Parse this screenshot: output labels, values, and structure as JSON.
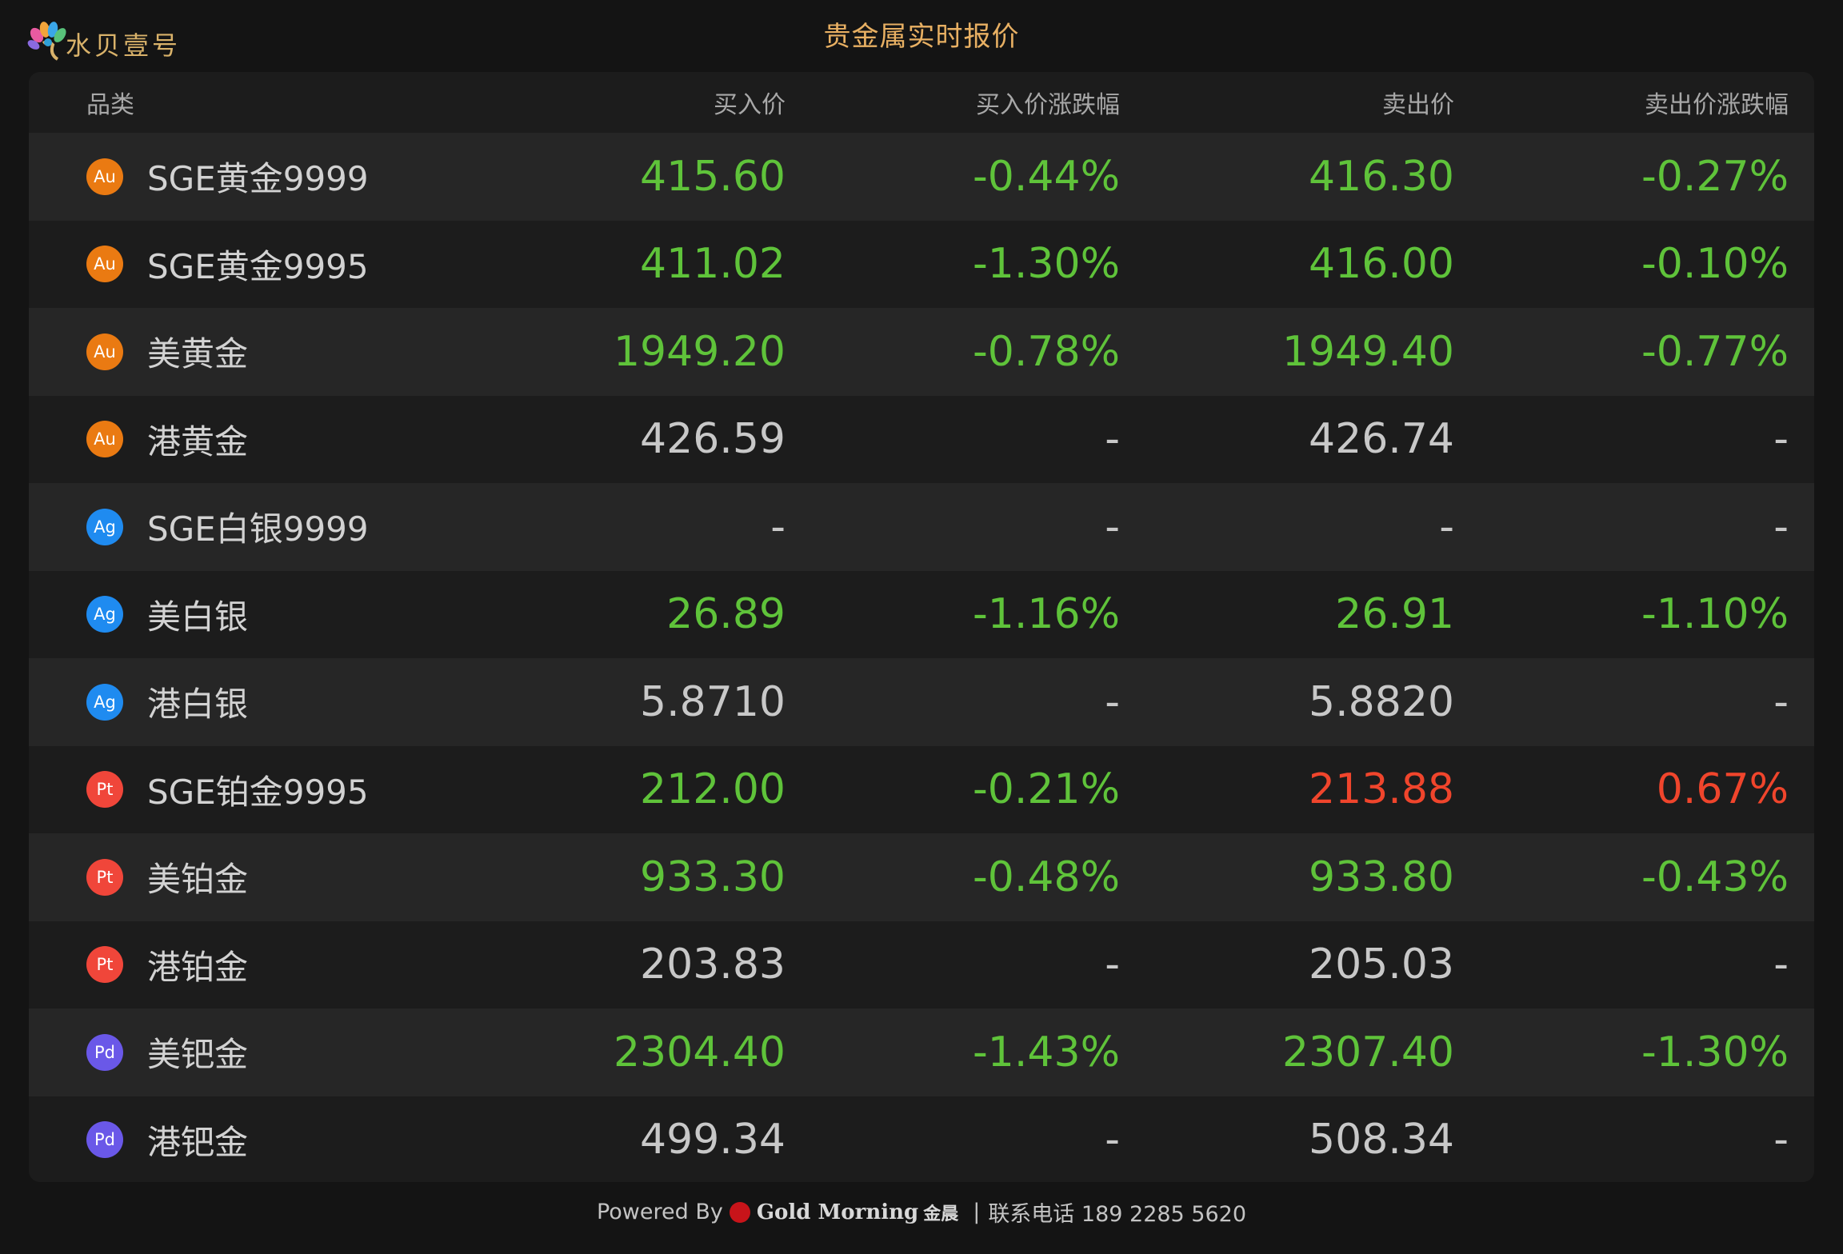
{
  "header": {
    "logo_text": "水贝壹号",
    "title": "贵金属实时报价"
  },
  "columns": {
    "category": "品类",
    "buy_price": "买入价",
    "buy_change": "买入价涨跌幅",
    "sell_price": "卖出价",
    "sell_change": "卖出价涨跌幅"
  },
  "colors": {
    "down": "#5fc33a",
    "up": "#f0452c",
    "neutral": "#c8c8c8",
    "title": "#e8b063"
  },
  "rows": [
    {
      "metal": "Au",
      "name": "SGE黄金9999",
      "buy": "415.60",
      "buy_change": "-0.44%",
      "sell": "416.30",
      "sell_change": "-0.27%",
      "buy_color": "green",
      "buy_change_color": "green",
      "sell_color": "green",
      "sell_change_color": "green"
    },
    {
      "metal": "Au",
      "name": "SGE黄金9995",
      "buy": "411.02",
      "buy_change": "-1.30%",
      "sell": "416.00",
      "sell_change": "-0.10%",
      "buy_color": "green",
      "buy_change_color": "green",
      "sell_color": "green",
      "sell_change_color": "green"
    },
    {
      "metal": "Au",
      "name": "美黄金",
      "buy": "1949.20",
      "buy_change": "-0.78%",
      "sell": "1949.40",
      "sell_change": "-0.77%",
      "buy_color": "green",
      "buy_change_color": "green",
      "sell_color": "green",
      "sell_change_color": "green"
    },
    {
      "metal": "Au",
      "name": "港黄金",
      "buy": "426.59",
      "buy_change": "-",
      "sell": "426.74",
      "sell_change": "-",
      "buy_color": "gray",
      "buy_change_color": "gray",
      "sell_color": "gray",
      "sell_change_color": "gray"
    },
    {
      "metal": "Ag",
      "name": "SGE白银9999",
      "buy": "-",
      "buy_change": "-",
      "sell": "-",
      "sell_change": "-",
      "buy_color": "gray",
      "buy_change_color": "gray",
      "sell_color": "gray",
      "sell_change_color": "gray"
    },
    {
      "metal": "Ag",
      "name": "美白银",
      "buy": "26.89",
      "buy_change": "-1.16%",
      "sell": "26.91",
      "sell_change": "-1.10%",
      "buy_color": "green",
      "buy_change_color": "green",
      "sell_color": "green",
      "sell_change_color": "green"
    },
    {
      "metal": "Ag",
      "name": "港白银",
      "buy": "5.8710",
      "buy_change": "-",
      "sell": "5.8820",
      "sell_change": "-",
      "buy_color": "gray",
      "buy_change_color": "gray",
      "sell_color": "gray",
      "sell_change_color": "gray"
    },
    {
      "metal": "Pt",
      "name": "SGE铂金9995",
      "buy": "212.00",
      "buy_change": "-0.21%",
      "sell": "213.88",
      "sell_change": "0.67%",
      "buy_color": "green",
      "buy_change_color": "green",
      "sell_color": "red",
      "sell_change_color": "red"
    },
    {
      "metal": "Pt",
      "name": "美铂金",
      "buy": "933.30",
      "buy_change": "-0.48%",
      "sell": "933.80",
      "sell_change": "-0.43%",
      "buy_color": "green",
      "buy_change_color": "green",
      "sell_color": "green",
      "sell_change_color": "green"
    },
    {
      "metal": "Pt",
      "name": "港铂金",
      "buy": "203.83",
      "buy_change": "-",
      "sell": "205.03",
      "sell_change": "-",
      "buy_color": "gray",
      "buy_change_color": "gray",
      "sell_color": "gray",
      "sell_change_color": "gray"
    },
    {
      "metal": "Pd",
      "name": "美钯金",
      "buy": "2304.40",
      "buy_change": "-1.43%",
      "sell": "2307.40",
      "sell_change": "-1.30%",
      "buy_color": "green",
      "buy_change_color": "green",
      "sell_color": "green",
      "sell_change_color": "green"
    },
    {
      "metal": "Pd",
      "name": "港钯金",
      "buy": "499.34",
      "buy_change": "-",
      "sell": "508.34",
      "sell_change": "-",
      "buy_color": "gray",
      "buy_change_color": "gray",
      "sell_color": "gray",
      "sell_change_color": "gray"
    }
  ],
  "footer": {
    "powered_by": "Powered By",
    "brand_name": "Gold Morning",
    "brand_cn": "金晨",
    "separator": "|",
    "contact": "联系电话 189 2285 5620"
  }
}
